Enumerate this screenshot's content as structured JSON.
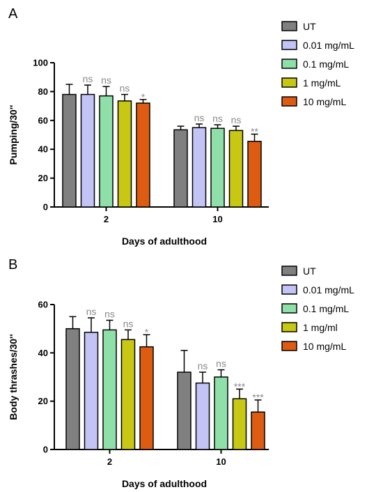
{
  "panels": [
    {
      "letter": "A",
      "legend": [
        "UT",
        "0.01 mg/mL",
        "0.1 mg/mL",
        "1 mg/mL",
        "10 mg/mL"
      ],
      "chart_data": {
        "type": "bar",
        "categories": [
          "2",
          "10"
        ],
        "xlabel": "Days of adulthood",
        "ylabel": "Pumping/30''",
        "ylim": [
          0,
          100
        ],
        "yticks": [
          0,
          20,
          40,
          60,
          80,
          100
        ],
        "series": [
          {
            "name": "UT",
            "color": "#808080",
            "values": [
              78,
              53.5
            ],
            "errors": [
              7,
              2.5
            ],
            "significance": [
              "",
              ""
            ]
          },
          {
            "name": "0.01 mg/mL",
            "color": "#c3c3f5",
            "values": [
              78,
              55
            ],
            "errors": [
              6.5,
              2.5
            ],
            "significance": [
              "ns",
              "ns"
            ]
          },
          {
            "name": "0.1 mg/mL",
            "color": "#8fe0a8",
            "values": [
              77,
              54.5
            ],
            "errors": [
              6.5,
              2.5
            ],
            "significance": [
              "ns",
              "ns"
            ]
          },
          {
            "name": "1 mg/mL",
            "color": "#c8c814",
            "values": [
              73.5,
              53
            ],
            "errors": [
              4.5,
              3
            ],
            "significance": [
              "ns",
              "ns"
            ]
          },
          {
            "name": "10 mg/mL",
            "color": "#dd5c12",
            "values": [
              72,
              45.5
            ],
            "errors": [
              2.5,
              5
            ],
            "significance": [
              "*",
              "**"
            ]
          }
        ]
      }
    },
    {
      "letter": "B",
      "legend": [
        "UT",
        "0.01 mg/mL",
        "0.1 mg/mL",
        "1 mg/ml",
        "10 mg/mL"
      ],
      "chart_data": {
        "type": "bar",
        "categories": [
          "2",
          "10"
        ],
        "xlabel": "Days of adulthood",
        "ylabel": "Body thrashes/30''",
        "ylim": [
          0,
          60
        ],
        "yticks": [
          0,
          20,
          40,
          60
        ],
        "series": [
          {
            "name": "UT",
            "color": "#808080",
            "values": [
              50,
              32
            ],
            "errors": [
              5,
              9
            ],
            "significance": [
              "",
              ""
            ]
          },
          {
            "name": "0.01 mg/mL",
            "color": "#c3c3f5",
            "values": [
              48.5,
              27.5
            ],
            "errors": [
              6,
              4.5
            ],
            "significance": [
              "ns",
              "ns"
            ]
          },
          {
            "name": "0.1 mg/mL",
            "color": "#8fe0a8",
            "values": [
              49.5,
              30
            ],
            "errors": [
              4,
              3
            ],
            "significance": [
              "ns",
              "ns"
            ]
          },
          {
            "name": "1 mg/ml",
            "color": "#c8c814",
            "values": [
              45.5,
              21
            ],
            "errors": [
              4,
              4
            ],
            "significance": [
              "ns",
              "***"
            ]
          },
          {
            "name": "10 mg/mL",
            "color": "#dd5c12",
            "values": [
              42.5,
              15.5
            ],
            "errors": [
              5,
              5
            ],
            "significance": [
              "*",
              "***"
            ]
          }
        ]
      }
    }
  ]
}
